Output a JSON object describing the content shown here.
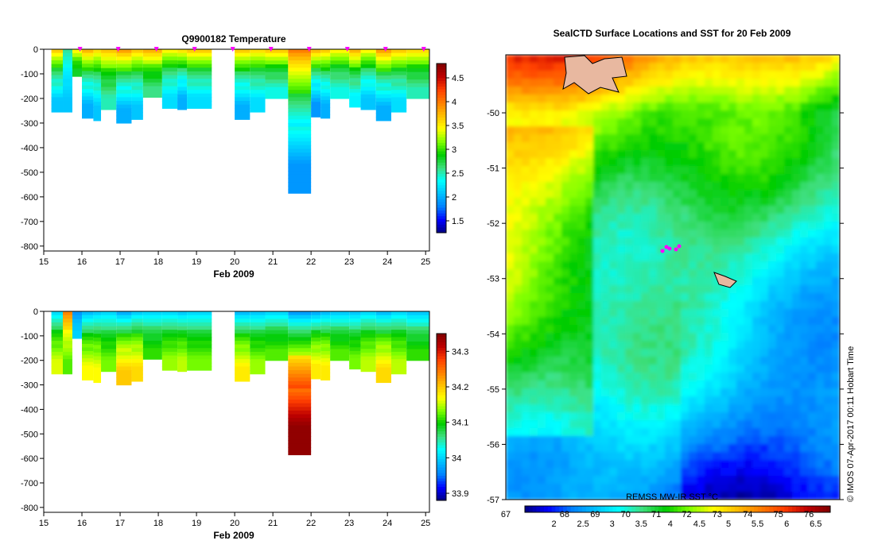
{
  "chart_data": [
    {
      "type": "heatmap",
      "title": "Q9900182  Temperature",
      "xlabel": "Feb 2009",
      "ylabel": "",
      "xlim": [
        15,
        25
      ],
      "ylim": [
        -820,
        0
      ],
      "x_ticks": [
        "15",
        "16",
        "17",
        "18",
        "19",
        "20",
        "21",
        "22",
        "23",
        "24",
        "25"
      ],
      "y_ticks": [
        "0",
        "-100",
        "-200",
        "-300",
        "-400",
        "-500",
        "-600",
        "-700",
        "-800"
      ],
      "colorbar": {
        "range": [
          1.25,
          4.8
        ],
        "ticks": [
          "4.5",
          "4",
          "3.5",
          "3",
          "2.5",
          "2",
          "1.5"
        ]
      },
      "profile_markers": [
        15.95,
        16.95,
        17.95,
        18.95,
        19.95,
        20.95,
        21.95,
        22.95,
        23.95,
        24.95
      ],
      "profiles": [
        {
          "x0": 15.2,
          "x1": 15.5,
          "depth": 255,
          "surface": 3.8,
          "bottom": 2.1
        },
        {
          "x0": 15.5,
          "x1": 15.75,
          "depth": 255,
          "surface": 2.6,
          "bottom": 2.1
        },
        {
          "x0": 15.75,
          "x1": 16.0,
          "depth": 110,
          "surface": 3.6,
          "bottom": 2.8
        },
        {
          "x0": 16.0,
          "x1": 16.3,
          "depth": 280,
          "surface": 3.9,
          "bottom": 2.0
        },
        {
          "x0": 16.3,
          "x1": 16.5,
          "depth": 290,
          "surface": 3.7,
          "bottom": 2.1
        },
        {
          "x0": 16.5,
          "x1": 16.9,
          "depth": 245,
          "surface": 3.8,
          "bottom": 2.5
        },
        {
          "x0": 16.9,
          "x1": 17.3,
          "depth": 300,
          "surface": 4.0,
          "bottom": 2.0
        },
        {
          "x0": 17.3,
          "x1": 17.6,
          "depth": 285,
          "surface": 3.8,
          "bottom": 2.1
        },
        {
          "x0": 17.6,
          "x1": 18.1,
          "depth": 195,
          "surface": 3.9,
          "bottom": 2.6
        },
        {
          "x0": 18.1,
          "x1": 18.5,
          "depth": 240,
          "surface": 3.6,
          "bottom": 2.2
        },
        {
          "x0": 18.5,
          "x1": 18.75,
          "depth": 245,
          "surface": 3.7,
          "bottom": 2.0
        },
        {
          "x0": 18.75,
          "x1": 19.4,
          "depth": 240,
          "surface": 3.8,
          "bottom": 2.2
        },
        {
          "x0": 20.0,
          "x1": 20.4,
          "depth": 285,
          "surface": 3.8,
          "bottom": 2.0
        },
        {
          "x0": 20.4,
          "x1": 20.8,
          "depth": 255,
          "surface": 3.7,
          "bottom": 2.2
        },
        {
          "x0": 20.8,
          "x1": 21.4,
          "depth": 200,
          "surface": 3.8,
          "bottom": 2.4
        },
        {
          "x0": 21.4,
          "x1": 22.0,
          "depth": 585,
          "surface": 4.1,
          "bottom": 1.9
        },
        {
          "x0": 22.0,
          "x1": 22.25,
          "depth": 275,
          "surface": 3.9,
          "bottom": 1.9
        },
        {
          "x0": 22.25,
          "x1": 22.5,
          "depth": 280,
          "surface": 3.8,
          "bottom": 2.0
        },
        {
          "x0": 22.5,
          "x1": 23.0,
          "depth": 200,
          "surface": 3.6,
          "bottom": 2.4
        },
        {
          "x0": 23.0,
          "x1": 23.3,
          "depth": 235,
          "surface": 3.9,
          "bottom": 2.3
        },
        {
          "x0": 23.3,
          "x1": 23.7,
          "depth": 245,
          "surface": 3.6,
          "bottom": 2.1
        },
        {
          "x0": 23.7,
          "x1": 24.1,
          "depth": 290,
          "surface": 4.0,
          "bottom": 2.0
        },
        {
          "x0": 24.1,
          "x1": 24.5,
          "depth": 255,
          "surface": 3.8,
          "bottom": 2.2
        },
        {
          "x0": 24.5,
          "x1": 25.1,
          "depth": 200,
          "surface": 3.7,
          "bottom": 2.5
        }
      ]
    },
    {
      "type": "heatmap",
      "title": "",
      "xlabel": "Feb 2009",
      "ylabel": "",
      "xlim": [
        15,
        25
      ],
      "ylim": [
        -820,
        0
      ],
      "x_ticks": [
        "15",
        "16",
        "17",
        "18",
        "19",
        "20",
        "21",
        "22",
        "23",
        "24",
        "25"
      ],
      "y_ticks": [
        "0",
        "-100",
        "-200",
        "-300",
        "-400",
        "-500",
        "-600",
        "-700",
        "-800"
      ],
      "colorbar": {
        "range": [
          33.88,
          34.35
        ],
        "ticks": [
          "34.3",
          "34.2",
          "34.1",
          "34",
          "33.9"
        ]
      },
      "profiles": [
        {
          "x0": 15.2,
          "x1": 15.5,
          "depth": 255,
          "surface": 33.99,
          "bottom": 34.16
        },
        {
          "x0": 15.5,
          "x1": 15.75,
          "depth": 255,
          "surface": 34.25,
          "bottom": 34.12
        },
        {
          "x0": 15.75,
          "x1": 16.0,
          "depth": 110,
          "surface": 33.96,
          "bottom": 34.0
        },
        {
          "x0": 16.0,
          "x1": 16.3,
          "depth": 280,
          "surface": 33.97,
          "bottom": 34.17
        },
        {
          "x0": 16.3,
          "x1": 16.5,
          "depth": 290,
          "surface": 33.98,
          "bottom": 34.17
        },
        {
          "x0": 16.5,
          "x1": 16.9,
          "depth": 245,
          "surface": 33.99,
          "bottom": 34.13
        },
        {
          "x0": 16.9,
          "x1": 17.3,
          "depth": 300,
          "surface": 33.96,
          "bottom": 34.2
        },
        {
          "x0": 17.3,
          "x1": 17.6,
          "depth": 285,
          "surface": 33.98,
          "bottom": 34.19
        },
        {
          "x0": 17.6,
          "x1": 18.1,
          "depth": 195,
          "surface": 33.99,
          "bottom": 34.11
        },
        {
          "x0": 18.1,
          "x1": 18.5,
          "depth": 240,
          "surface": 33.99,
          "bottom": 34.14
        },
        {
          "x0": 18.5,
          "x1": 18.75,
          "depth": 245,
          "surface": 33.98,
          "bottom": 34.15
        },
        {
          "x0": 18.75,
          "x1": 19.4,
          "depth": 240,
          "surface": 33.99,
          "bottom": 34.13
        },
        {
          "x0": 20.0,
          "x1": 20.4,
          "depth": 285,
          "surface": 33.97,
          "bottom": 34.18
        },
        {
          "x0": 20.4,
          "x1": 20.8,
          "depth": 255,
          "surface": 33.98,
          "bottom": 34.14
        },
        {
          "x0": 20.8,
          "x1": 21.4,
          "depth": 200,
          "surface": 33.99,
          "bottom": 34.12
        },
        {
          "x0": 21.4,
          "x1": 22.0,
          "depth": 585,
          "surface": 33.95,
          "bottom": 34.34
        },
        {
          "x0": 22.0,
          "x1": 22.25,
          "depth": 275,
          "surface": 33.96,
          "bottom": 34.18
        },
        {
          "x0": 22.25,
          "x1": 22.5,
          "depth": 280,
          "surface": 33.97,
          "bottom": 34.18
        },
        {
          "x0": 22.5,
          "x1": 23.0,
          "depth": 200,
          "surface": 33.98,
          "bottom": 34.12
        },
        {
          "x0": 23.0,
          "x1": 23.3,
          "depth": 235,
          "surface": 33.98,
          "bottom": 34.13
        },
        {
          "x0": 23.3,
          "x1": 23.7,
          "depth": 245,
          "surface": 33.99,
          "bottom": 34.15
        },
        {
          "x0": 23.7,
          "x1": 24.1,
          "depth": 290,
          "surface": 33.97,
          "bottom": 34.19
        },
        {
          "x0": 24.1,
          "x1": 24.5,
          "depth": 255,
          "surface": 33.99,
          "bottom": 34.15
        },
        {
          "x0": 24.5,
          "x1": 25.1,
          "depth": 200,
          "surface": 33.98,
          "bottom": 34.11
        }
      ]
    },
    {
      "type": "heatmap",
      "title": "SealCTD Surface Locations and SST for 20 Feb 2009",
      "xlabel": "",
      "ylabel": "",
      "ylim": [
        -57,
        -49
      ],
      "y_ticks": [
        "-50",
        "-51",
        "-52",
        "-53",
        "-54",
        "-55",
        "-56",
        "-57"
      ],
      "colorbar_label": "REMSS MW-IR SST °C",
      "colorbar_ticks_top": [
        "67",
        "68",
        "69",
        "70",
        "71",
        "72",
        "73",
        "74",
        "75",
        "76"
      ],
      "colorbar_ticks_bottom": [
        "2",
        "2.5",
        "3",
        "3.5",
        "4",
        "4.5",
        "5",
        "5.5",
        "6",
        "6.5"
      ],
      "colorbar_range": [
        1.5,
        6.75
      ],
      "copyright": "© IMOS 07-Apr-2017 00:11 Hobart Time"
    }
  ],
  "colors": {
    "cmap": [
      "#00007f",
      "#0000ff",
      "#007fff",
      "#00bfff",
      "#00ffff",
      "#3fdf7f",
      "#00cc00",
      "#7fff00",
      "#ffff00",
      "#ffbf00",
      "#ff7f00",
      "#ff3f00",
      "#bf0000",
      "#7f0000"
    ],
    "land": "#e8b8a0",
    "marker": "#ff00ff"
  }
}
